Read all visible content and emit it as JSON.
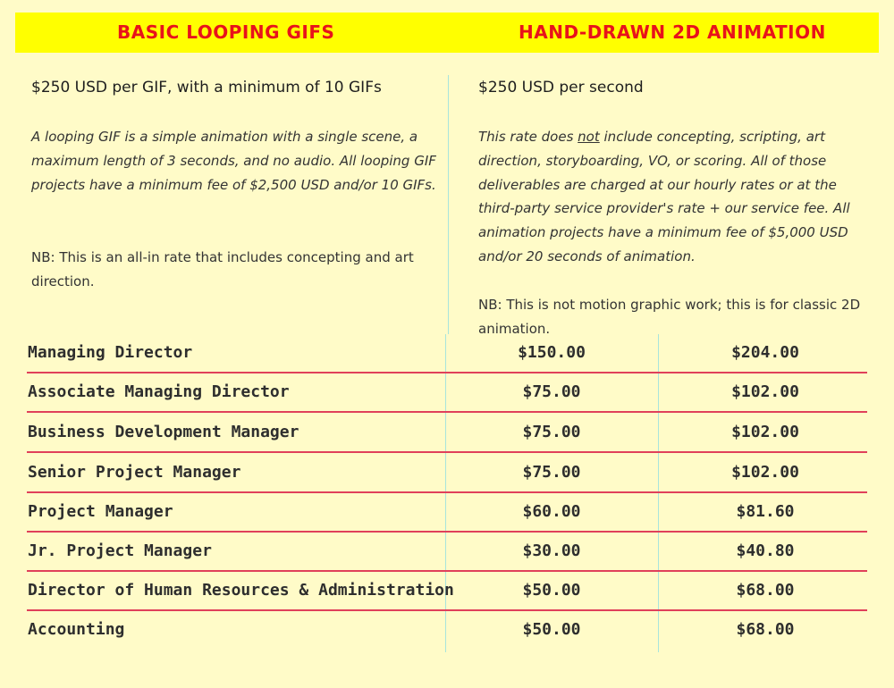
{
  "header": {
    "left_title": "BASIC LOOPING GIFS",
    "right_title": "HAND-DRAWN 2D ANIMATION",
    "band_color": "#ffff00",
    "title_color": "#e8121b"
  },
  "left_column": {
    "price": "$250 USD per GIF, with a minimum of 10 GIFs",
    "description": "A looping GIF is a simple animation with a single scene, a maximum length of 3 seconds, and no audio. All looping GIF projects have a minimum fee of $2,500 USD and/or 10 GIFs.",
    "note": "NB: This is an all-in rate that includes concepting and art direction."
  },
  "right_column": {
    "price": "$250 USD per second",
    "description_pre": "This rate does ",
    "description_underlined": "not",
    "description_post": " include concepting, scripting, art direction, storyboarding, VO, or scoring. All of those deliverables are charged at our hourly rates or at the third-party service provider's rate + our service fee. All animation projects have a minimum fee of $5,000 USD and/or 20 seconds of animation.",
    "note": "NB: This is not motion graphic work; this is for classic 2D animation."
  },
  "rates_table": {
    "rows": [
      {
        "role": "Managing Director",
        "rate1": "$150.00",
        "rate2": "$204.00"
      },
      {
        "role": "Associate Managing Director",
        "rate1": "$75.00",
        "rate2": "$102.00"
      },
      {
        "role": "Business Development Manager",
        "rate1": "$75.00",
        "rate2": "$102.00"
      },
      {
        "role": "Senior Project Manager",
        "rate1": "$75.00",
        "rate2": "$102.00"
      },
      {
        "role": "Project Manager",
        "rate1": "$60.00",
        "rate2": "$81.60"
      },
      {
        "role": "Jr. Project Manager",
        "rate1": "$30.00",
        "rate2": "$40.80"
      },
      {
        "role": "Director of Human Resources & Administration",
        "rate1": "$50.00",
        "rate2": "$68.00"
      },
      {
        "role": "Accounting",
        "rate1": "$50.00",
        "rate2": "$68.00"
      }
    ],
    "row_line_color": "#e0405a",
    "divider_color": "#a8e4dc"
  }
}
